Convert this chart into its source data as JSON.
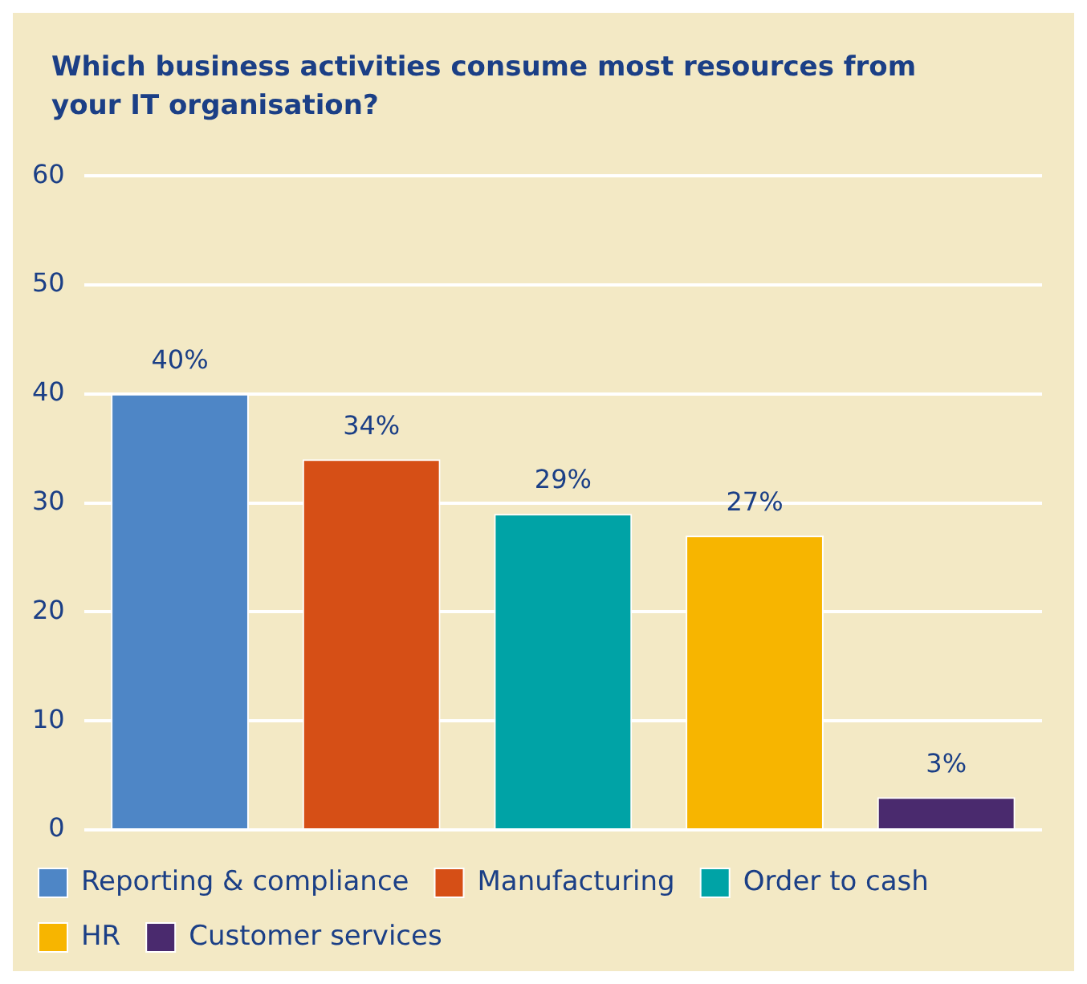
{
  "chart_data": {
    "type": "bar",
    "title": "Which business activities consume most resources from your IT organisation?",
    "categories": [
      null,
      null,
      null,
      null,
      null
    ],
    "series": [
      {
        "name": "Reporting & compliance",
        "color": "#4e86c6",
        "values": [
          40,
          null,
          null,
          null,
          null
        ],
        "value_labels": [
          "40%",
          null,
          null,
          null,
          null
        ]
      },
      {
        "name": "Manufacturing",
        "color": "#d64f16",
        "values": [
          null,
          34,
          null,
          null,
          null
        ],
        "value_labels": [
          null,
          "34%",
          null,
          null,
          null
        ]
      },
      {
        "name": "Order to cash",
        "color": "#00a3a6",
        "values": [
          null,
          null,
          29,
          null,
          null
        ],
        "value_labels": [
          null,
          null,
          "29%",
          null,
          null
        ]
      },
      {
        "name": "HR",
        "color": "#f7b500",
        "values": [
          null,
          null,
          null,
          27,
          null
        ],
        "value_labels": [
          null,
          null,
          null,
          "27%",
          null
        ]
      },
      {
        "name": "Customer services",
        "color": "#4a2a6e",
        "values": [
          null,
          null,
          null,
          null,
          3
        ],
        "value_labels": [
          null,
          null,
          null,
          null,
          "3%"
        ]
      }
    ],
    "ylim": [
      0,
      60
    ],
    "yticks": [
      0,
      10,
      20,
      30,
      40,
      50,
      60
    ],
    "grid": "y",
    "legend": "bottom"
  }
}
